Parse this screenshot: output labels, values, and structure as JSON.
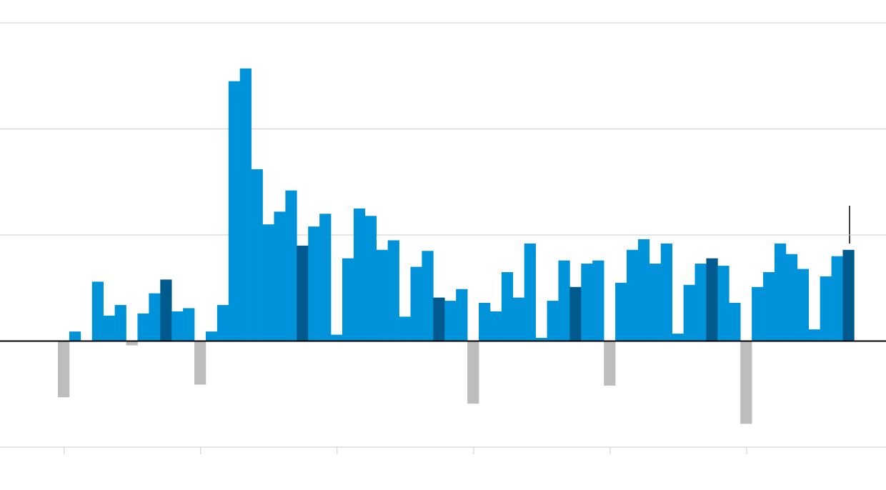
{
  "chart_data": {
    "type": "bar",
    "categories": [
      null,
      null,
      null,
      null,
      null,
      null,
      null,
      null,
      null,
      null,
      null,
      null,
      null,
      null,
      null,
      null,
      null,
      null,
      null,
      null,
      null,
      null,
      null,
      null,
      null,
      null,
      null,
      null,
      null,
      null,
      null,
      null,
      null,
      null,
      null,
      null,
      null,
      null,
      null,
      null,
      null,
      null,
      null,
      null,
      null,
      null,
      null,
      null,
      null,
      null,
      null,
      null,
      null,
      null,
      null,
      null,
      null,
      null,
      null,
      null,
      null,
      null,
      null,
      null,
      null,
      null,
      null,
      null,
      null,
      null
    ],
    "values": [
      -0.53,
      0.09,
      0,
      0.56,
      0.24,
      0.34,
      -0.04,
      0.26,
      0.45,
      0.58,
      0.28,
      0.31,
      -0.41,
      0.09,
      0.34,
      2.45,
      2.57,
      1.62,
      1.1,
      1.22,
      1.42,
      0.9,
      1.08,
      1.2,
      0.06,
      0.78,
      1.25,
      1.18,
      0.86,
      0.95,
      0.23,
      0.7,
      0.85,
      0.41,
      0.38,
      0.49,
      -0.59,
      0.36,
      0.28,
      0.65,
      0.41,
      0.92,
      0.03,
      0.38,
      0.76,
      0.51,
      0.73,
      0.76,
      -0.42,
      0.55,
      0.86,
      0.96,
      0.73,
      0.92,
      0.07,
      0.53,
      0.73,
      0.78,
      0.71,
      0.36,
      -0.78,
      0.51,
      0.65,
      0.92,
      0.82,
      0.68,
      0.11,
      0.61,
      0.8,
      0.86
    ],
    "colors": {
      "positive": "#0093d9",
      "highlight": "#005a8e",
      "negative": "#bdbdbd"
    },
    "highlighted": [
      9,
      21,
      33,
      45,
      57,
      69
    ],
    "ylim": [
      -1,
      3
    ],
    "yticks": [
      -1,
      0,
      1,
      2,
      3
    ],
    "grid": true,
    "xticks": [
      0,
      12,
      24,
      36,
      48,
      60
    ]
  }
}
